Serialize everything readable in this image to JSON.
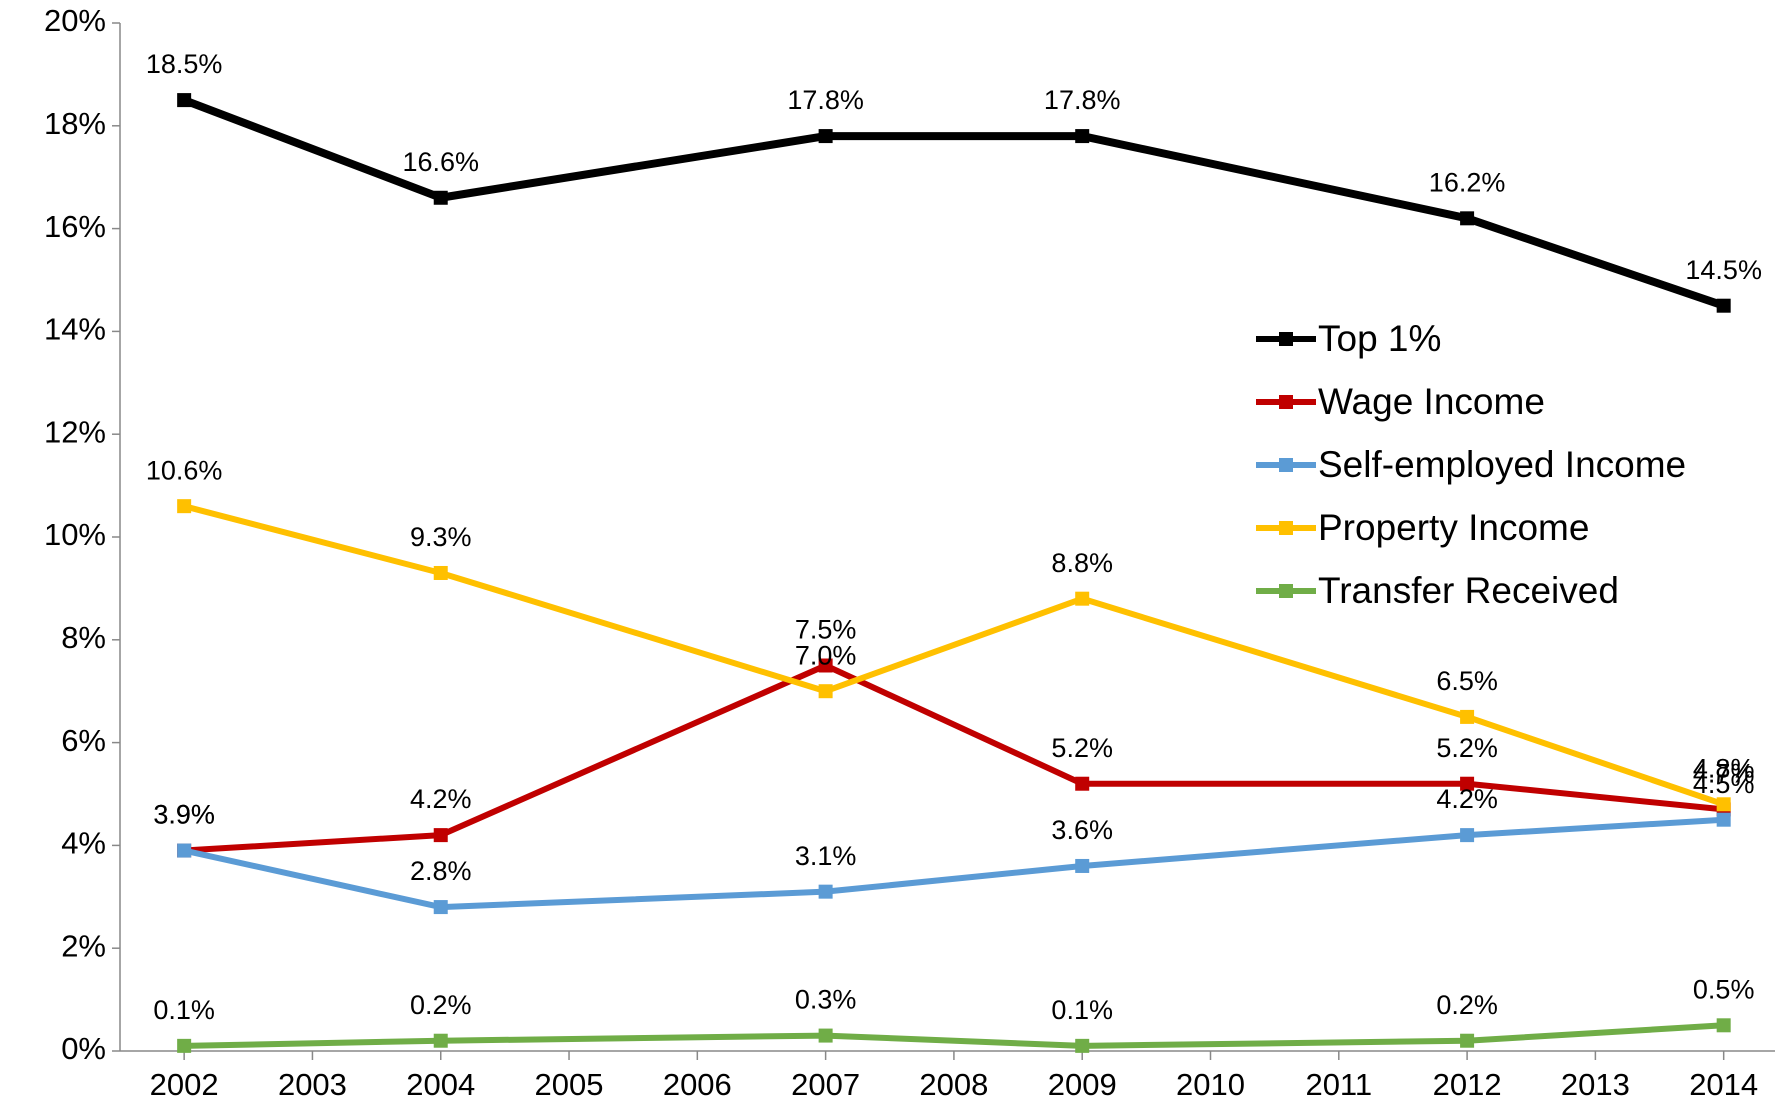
{
  "chart_data": {
    "type": "line",
    "x": [
      2002,
      2004,
      2007,
      2009,
      2012,
      2014
    ],
    "xlim": [
      2001.5,
      2014.4
    ],
    "xticks": [
      2002,
      2003,
      2004,
      2005,
      2006,
      2007,
      2008,
      2009,
      2010,
      2011,
      2012,
      2013,
      2014
    ],
    "ylim": [
      0,
      20
    ],
    "yticks": [
      {
        "value": 0,
        "label": "0%"
      },
      {
        "value": 2,
        "label": "2%"
      },
      {
        "value": 4,
        "label": "4%"
      },
      {
        "value": 6,
        "label": "6%"
      },
      {
        "value": 8,
        "label": "8%"
      },
      {
        "value": 10,
        "label": "10%"
      },
      {
        "value": 12,
        "label": "12%"
      },
      {
        "value": 14,
        "label": "14%"
      },
      {
        "value": 16,
        "label": "16%"
      },
      {
        "value": 18,
        "label": "18%"
      },
      {
        "value": 20,
        "label": "20%"
      }
    ],
    "grid": false,
    "legend": "right",
    "series": [
      {
        "name": "Top 1%",
        "color": "#000000",
        "values": [
          18.5,
          16.6,
          17.8,
          17.8,
          16.2,
          14.5
        ],
        "value_labels": [
          "18.5%",
          "16.6%",
          "17.8%",
          "17.8%",
          "16.2%",
          "14.5%"
        ]
      },
      {
        "name": "Wage Income",
        "color": "#c00000",
        "values": [
          3.9,
          4.2,
          7.5,
          5.2,
          5.2,
          4.7
        ],
        "value_labels": [
          "3.9%",
          "4.2%",
          "7.5%",
          "5.2%",
          "5.2%",
          "4.7%"
        ]
      },
      {
        "name": "Self-employed Income",
        "color": "#5b9bd5",
        "values": [
          3.9,
          2.8,
          3.1,
          3.6,
          4.2,
          4.5
        ],
        "value_labels": [
          "3.9%",
          "2.8%",
          "3.1%",
          "3.6%",
          "4.2%",
          "4.5%"
        ]
      },
      {
        "name": "Property Income",
        "color": "#ffc000",
        "values": [
          10.6,
          9.3,
          7.0,
          8.8,
          6.5,
          4.8
        ],
        "value_labels": [
          "10.6%",
          "9.3%",
          "7.0%",
          "8.8%",
          "6.5%",
          "4.8%"
        ]
      },
      {
        "name": "Transfer Received",
        "color": "#70ad47",
        "values": [
          0.1,
          0.2,
          0.3,
          0.1,
          0.2,
          0.5
        ],
        "value_labels": [
          "0.1%",
          "0.2%",
          "0.3%",
          "0.1%",
          "0.2%",
          "0.5%"
        ]
      }
    ]
  }
}
